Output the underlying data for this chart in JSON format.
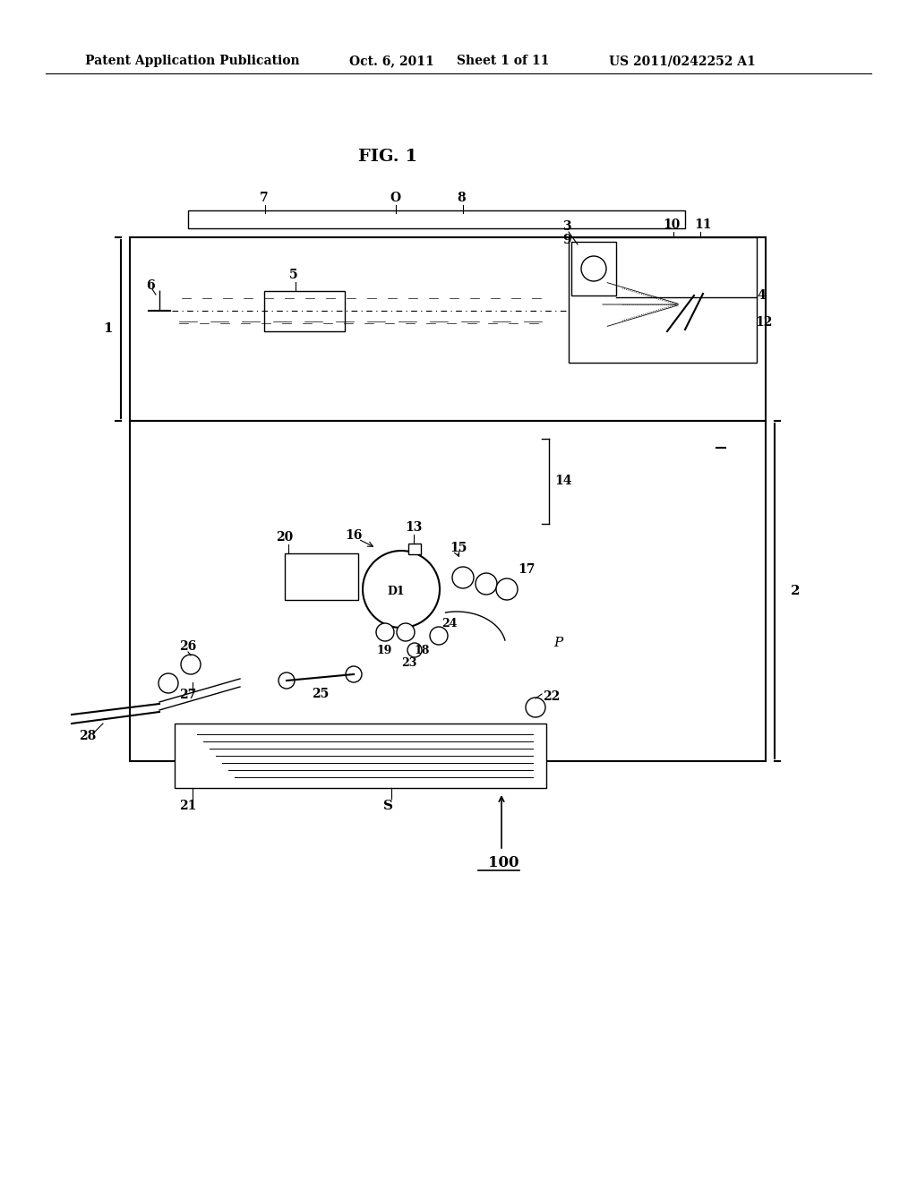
{
  "background_color": "#ffffff",
  "header_text": "Patent Application Publication",
  "header_date": "Oct. 6, 2011",
  "header_sheet": "Sheet 1 of 11",
  "header_patent": "US 2011/0242252 A1",
  "fig_label": "FIG. 1",
  "label_100": "100",
  "label_S": "S"
}
